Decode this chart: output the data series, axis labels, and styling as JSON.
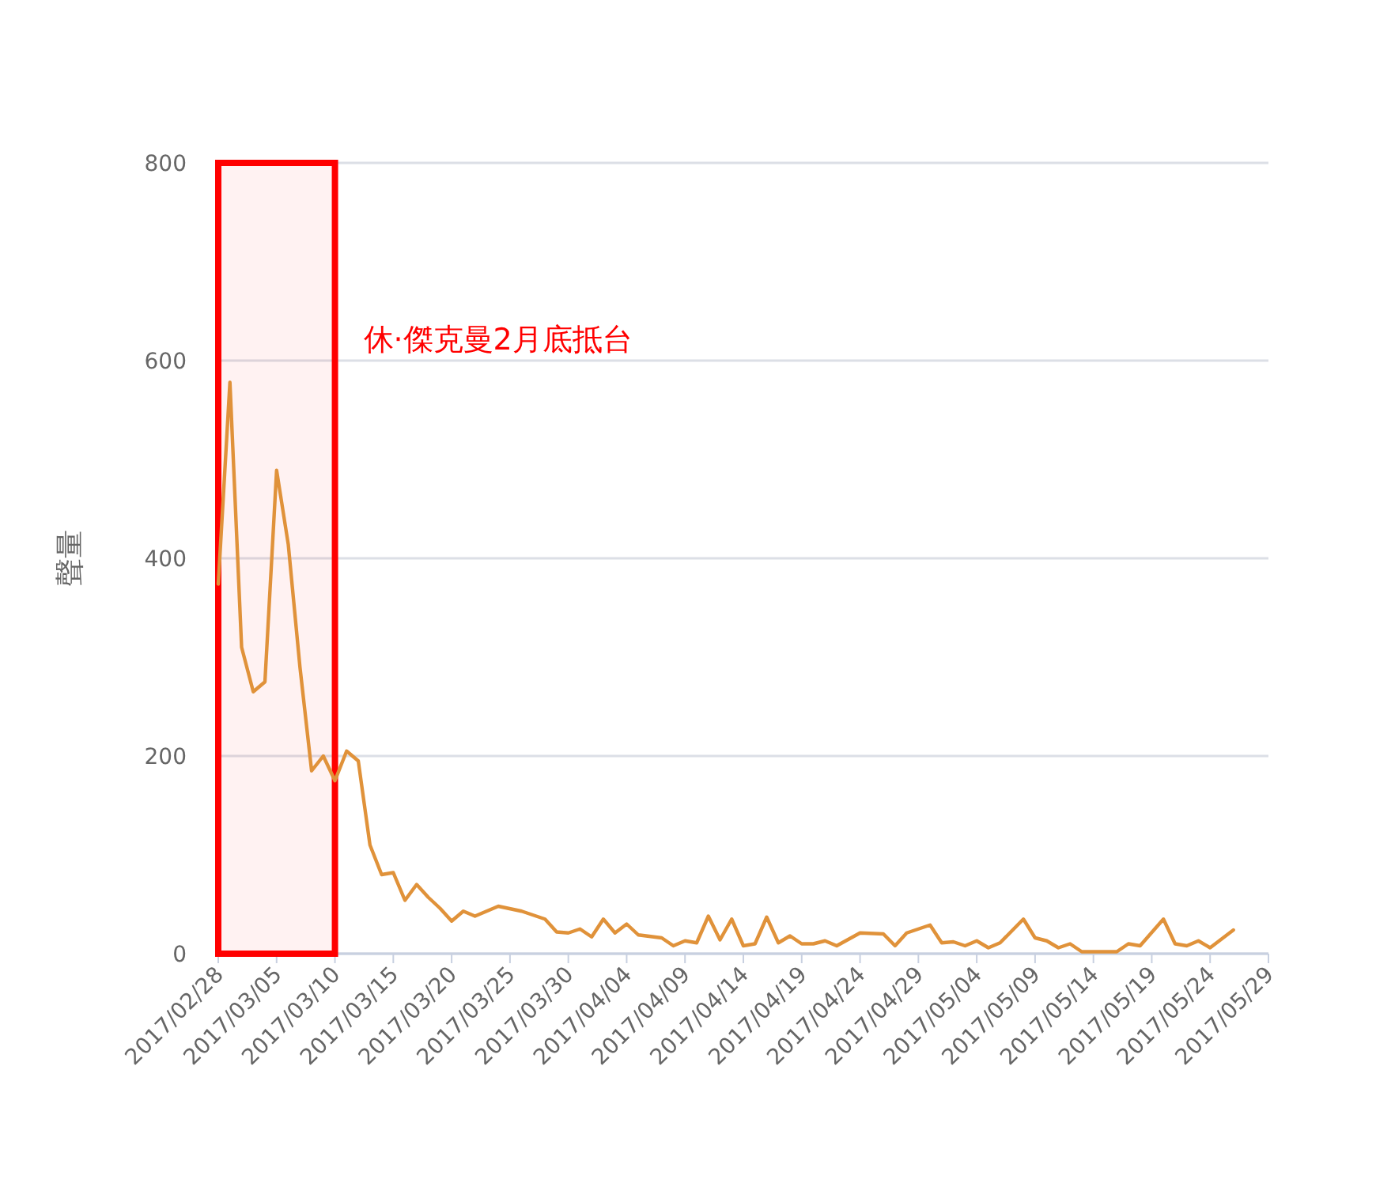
{
  "chart_data": {
    "type": "line",
    "ylabel": "聲量",
    "x": [
      "2017-02-28",
      "2017-03-01",
      "2017-03-02",
      "2017-03-03",
      "2017-03-04",
      "2017-03-05",
      "2017-03-06",
      "2017-03-07",
      "2017-03-08",
      "2017-03-09",
      "2017-03-10",
      "2017-03-11",
      "2017-03-12",
      "2017-03-13",
      "2017-03-14",
      "2017-03-15",
      "2017-03-16",
      "2017-03-17",
      "2017-03-18",
      "2017-03-19",
      "2017-03-20",
      "2017-03-21",
      "2017-03-22",
      "2017-03-24",
      "2017-03-26",
      "2017-03-28",
      "2017-03-29",
      "2017-03-30",
      "2017-03-31",
      "2017-04-01",
      "2017-04-02",
      "2017-04-03",
      "2017-04-04",
      "2017-04-05",
      "2017-04-07",
      "2017-04-08",
      "2017-04-09",
      "2017-04-10",
      "2017-04-11",
      "2017-04-12",
      "2017-04-13",
      "2017-04-14",
      "2017-04-15",
      "2017-04-16",
      "2017-04-17",
      "2017-04-18",
      "2017-04-19",
      "2017-04-20",
      "2017-04-21",
      "2017-04-22",
      "2017-04-24",
      "2017-04-26",
      "2017-04-27",
      "2017-04-28",
      "2017-04-30",
      "2017-05-01",
      "2017-05-02",
      "2017-05-03",
      "2017-05-04",
      "2017-05-05",
      "2017-05-06",
      "2017-05-08",
      "2017-05-09",
      "2017-05-10",
      "2017-05-11",
      "2017-05-12",
      "2017-05-13",
      "2017-05-16",
      "2017-05-17",
      "2017-05-18",
      "2017-05-20",
      "2017-05-21",
      "2017-05-22",
      "2017-05-23",
      "2017-05-24",
      "2017-05-26"
    ],
    "series": [
      {
        "color": "#e0923a",
        "values": [
          374,
          578,
          310,
          265,
          275,
          489,
          414,
          290,
          185,
          200,
          175,
          205,
          195,
          110,
          80,
          82,
          54,
          70,
          57,
          46,
          33,
          43,
          38,
          48,
          43,
          35,
          22,
          21,
          25,
          17,
          35,
          21,
          30,
          19,
          16,
          8,
          13,
          11,
          38,
          14,
          35,
          8,
          10,
          37,
          11,
          18,
          10,
          10,
          13,
          8,
          21,
          20,
          8,
          21,
          29,
          11,
          12,
          8,
          13,
          6,
          11,
          35,
          16,
          13,
          6,
          10,
          2,
          2,
          10,
          8,
          35,
          10,
          8,
          13,
          6,
          24
        ]
      }
    ],
    "xlim": [
      "2017-02-28",
      "2017-05-29"
    ],
    "xticks": [
      {
        "value": "2017-02-28",
        "label": "2017/02/28"
      },
      {
        "value": "2017-03-05",
        "label": "2017/03/05"
      },
      {
        "value": "2017-03-10",
        "label": "2017/03/10"
      },
      {
        "value": "2017-03-15",
        "label": "2017/03/15"
      },
      {
        "value": "2017-03-20",
        "label": "2017/03/20"
      },
      {
        "value": "2017-03-25",
        "label": "2017/03/25"
      },
      {
        "value": "2017-03-30",
        "label": "2017/03/30"
      },
      {
        "value": "2017-04-04",
        "label": "2017/04/04"
      },
      {
        "value": "2017-04-09",
        "label": "2017/04/09"
      },
      {
        "value": "2017-04-14",
        "label": "2017/04/14"
      },
      {
        "value": "2017-04-19",
        "label": "2017/04/19"
      },
      {
        "value": "2017-04-24",
        "label": "2017/04/24"
      },
      {
        "value": "2017-04-29",
        "label": "2017/04/29"
      },
      {
        "value": "2017-05-04",
        "label": "2017/05/04"
      },
      {
        "value": "2017-05-09",
        "label": "2017/05/09"
      },
      {
        "value": "2017-05-14",
        "label": "2017/05/14"
      },
      {
        "value": "2017-05-19",
        "label": "2017/05/19"
      },
      {
        "value": "2017-05-24",
        "label": "2017/05/24"
      },
      {
        "value": "2017-05-29",
        "label": "2017/05/29"
      }
    ],
    "ylim": [
      0,
      800
    ],
    "yticks": [
      0,
      200,
      400,
      600,
      800
    ],
    "grid": "y",
    "bands": [
      {
        "axis": "x",
        "from": "2017-02-28",
        "to": "2017-03-10",
        "label": "休·傑克曼2月底抵台",
        "color": "#ff0000"
      }
    ]
  }
}
